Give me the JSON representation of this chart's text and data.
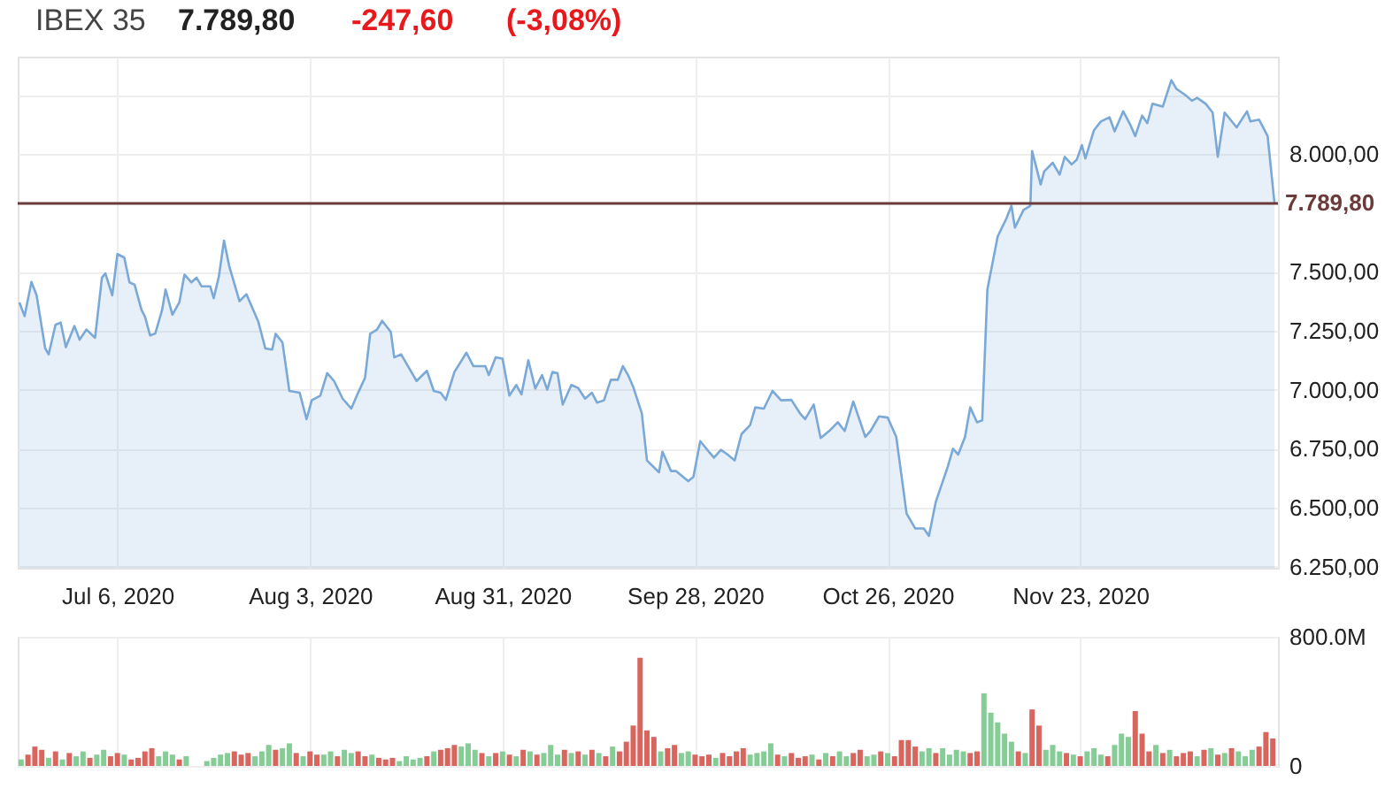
{
  "chart_data": [
    {
      "type": "area",
      "title": "IBEX 35",
      "annotations": [
        "7.789,80",
        "-247,60",
        "(-3,08%)"
      ],
      "x": [
        "2020-06-21T18:00",
        "2020-06-22T12:00",
        "2020-06-23T12:00",
        "2020-06-24T06:00",
        "2020-06-25T12:00",
        "2020-06-26",
        "2020-06-27",
        "2020-06-27T18:00",
        "2020-06-28T12:00",
        "2020-06-29T18:00",
        "2020-06-30T12:00",
        "2020-07-01T12:00",
        "2020-07-02T18:00",
        "2020-07-03T18:00",
        "2020-07-04T06:00",
        "2020-07-05T06:00",
        "2020-07-06",
        "2020-07-07",
        "2020-07-07T18:00",
        "2020-07-08T12:00",
        "2020-07-09T12:00",
        "2020-07-10",
        "2020-07-10T18:00",
        "2020-07-11T12:00",
        "2020-07-12T12:00",
        "2020-07-13",
        "2020-07-14",
        "2020-07-15",
        "2020-07-15T18:00",
        "2020-07-16T18:00",
        "2020-07-17T12:00",
        "2020-07-18T06:00",
        "2020-07-19T12:00",
        "2020-07-20",
        "2020-07-20T18:00",
        "2020-07-21T12:00",
        "2020-07-22T06:00",
        "2020-07-23T18:00",
        "2020-07-24T18:00",
        "2020-07-26T12:00",
        "2020-07-27T12:00",
        "2020-07-28T12:00",
        "2020-07-29",
        "2020-07-30",
        "2020-07-31",
        "2020-08-01T12:00",
        "2020-08-02T12:00",
        "2020-08-03T06:00",
        "2020-08-04T12:00",
        "2020-08-05T12:00",
        "2020-08-06T12:00",
        "2020-08-07T18:00",
        "2020-08-09",
        "2020-08-10",
        "2020-08-11",
        "2020-08-11T18:00",
        "2020-08-12T18:00",
        "2020-08-13T12:00",
        "2020-08-14T18:00",
        "2020-08-15T06:00",
        "2020-08-16T06:00",
        "2020-08-17T12:00",
        "2020-08-18T12:00",
        "2020-08-20",
        "2020-08-21",
        "2020-08-22",
        "2020-08-22T18:00",
        "2020-08-24",
        "2020-08-25T18:00",
        "2020-08-26T18:00",
        "2020-08-28T12:00",
        "2020-08-29",
        "2020-08-30",
        "2020-08-31",
        "2020-09-01",
        "2020-09-02",
        "2020-09-02T18:00",
        "2020-09-03T18:00",
        "2020-09-04T18:00",
        "2020-09-05T18:00",
        "2020-09-06T12:00",
        "2020-09-07T06:00",
        "2020-09-08",
        "2020-09-08T18:00",
        "2020-09-10",
        "2020-09-11",
        "2020-09-12",
        "2020-09-13",
        "2020-09-13T18:00",
        "2020-09-14T18:00",
        "2020-09-15T18:00",
        "2020-09-16T18:00",
        "2020-09-17T12:00",
        "2020-09-18T06:00",
        "2020-09-19",
        "2020-09-20T06:00",
        "2020-09-21",
        "2020-09-22T18:00",
        "2020-09-23T06:00",
        "2020-09-24T12:00",
        "2020-09-25T06:00",
        "2020-09-27",
        "2020-09-27T18:00",
        "2020-09-28T18:00",
        "2020-09-30",
        "2020-09-30T18:00",
        "2020-10-01T18:00",
        "2020-10-02T18:00",
        "2020-10-03T18:00",
        "2020-10-04T18:00",
        "2020-10-06",
        "2020-10-06T18:00",
        "2020-10-08",
        "2020-10-09T06:00",
        "2020-10-10T12:00",
        "2020-10-12",
        "2020-10-13T06:00",
        "2020-10-14",
        "2020-10-15T06:00",
        "2020-10-16T06:00",
        "2020-10-17T12:00",
        "2020-10-18T18:00",
        "2020-10-19T18:00",
        "2020-10-21",
        "2020-10-22T18:00",
        "2020-10-23T12:00",
        "2020-10-24T18:00",
        "2020-10-26",
        "2020-10-27T06:00",
        "2020-10-28T18:00",
        "2020-10-30",
        "2020-10-31T06:00",
        "2020-11-01",
        "2020-11-02",
        "2020-11-03T18:00",
        "2020-11-04T12:00",
        "2020-11-05T06:00",
        "2020-11-06T06:00",
        "2020-11-07",
        "2020-11-08",
        "2020-11-08T18:00",
        "2020-11-09T12:00",
        "2020-11-11",
        "2020-11-12T06:00",
        "2020-11-13",
        "2020-11-13T12:00",
        "2020-11-14T18:00",
        "2020-11-15T18:00",
        "2020-11-16",
        "2020-11-17T06:00",
        "2020-11-17T18:00",
        "2020-11-19",
        "2020-11-20",
        "2020-11-20T18:00",
        "2020-11-21T18:00",
        "2020-11-22T12:00",
        "2020-11-23T06:00",
        "2020-11-23T18:00",
        "2020-11-25",
        "2020-11-26",
        "2020-11-27T06:00",
        "2020-11-28",
        "2020-11-29T06:00",
        "2020-11-30T06:00",
        "2020-12-01",
        "2020-12-02",
        "2020-12-02T18:00",
        "2020-12-03T12:00",
        "2020-12-05",
        "2020-12-06T06:00",
        "2020-12-07",
        "2020-12-08T06:00",
        "2020-12-09T06:00",
        "2020-12-10",
        "2020-12-11T06:00",
        "2020-12-12T06:00",
        "2020-12-13",
        "2020-12-14",
        "2020-12-15T18:00",
        "2020-12-17T06:00",
        "2020-12-17T18:00",
        "2020-12-19",
        "2020-12-20T06:00",
        "2020-12-21T06:00"
      ],
      "series": [
        {
          "color": "#7aa9d8",
          "values": [
            7370,
            7312,
            7457,
            7400,
            7175,
            7150,
            7275,
            7285,
            7180,
            7270,
            7212,
            7255,
            7220,
            7475,
            7493,
            7400,
            7575,
            7560,
            7455,
            7445,
            7338,
            7310,
            7230,
            7238,
            7338,
            7425,
            7318,
            7370,
            7488,
            7455,
            7475,
            7438,
            7438,
            7388,
            7480,
            7632,
            7525,
            7375,
            7405,
            7287,
            7175,
            7170,
            7237,
            7200,
            6995,
            6987,
            6875,
            6955,
            6975,
            7070,
            7037,
            6962,
            6920,
            6987,
            7050,
            7237,
            7255,
            7292,
            7245,
            7137,
            7150,
            7087,
            7037,
            7080,
            6995,
            6987,
            6957,
            7075,
            7157,
            7100,
            7100,
            7062,
            7137,
            7132,
            6975,
            7020,
            6980,
            7125,
            7005,
            7062,
            7000,
            7075,
            7070,
            6937,
            7020,
            7007,
            6962,
            6987,
            6945,
            6955,
            7042,
            7042,
            7100,
            7062,
            7012,
            6900,
            6700,
            6650,
            6737,
            6655,
            6655,
            6612,
            6630,
            6782,
            6737,
            6712,
            6745,
            6725,
            6700,
            6812,
            6850,
            6925,
            6920,
            6995,
            6955,
            6957,
            6900,
            6875,
            6937,
            6795,
            6825,
            6862,
            6825,
            6950,
            6800,
            6825,
            6887,
            6882,
            6800,
            6475,
            6412,
            6412,
            6380,
            6525,
            6675,
            6750,
            6725,
            6800,
            6925,
            6862,
            6870,
            7425,
            7650,
            7725,
            7780,
            7687,
            7762,
            7780,
            8012,
            7870,
            7925,
            7962,
            7912,
            7987,
            7955,
            7975,
            8037,
            7980,
            8100,
            8137,
            8155,
            8095,
            8180,
            8125,
            8075,
            8162,
            8130,
            8212,
            8200,
            8312,
            8275,
            8250,
            8225,
            8237,
            8212,
            8175,
            7987,
            8175,
            8112,
            8180,
            8137,
            8145,
            8075,
            7789.8
          ]
        }
      ],
      "xlim": [
        "2020-06-21T12:00",
        "2020-12-21T18:00"
      ],
      "xticks": [
        {
          "value": "2020-07-06",
          "label": "Jul 6, 2020"
        },
        {
          "value": "2020-08-03",
          "label": "Aug 3, 2020"
        },
        {
          "value": "2020-08-31",
          "label": "Aug 31, 2020"
        },
        {
          "value": "2020-09-28",
          "label": "Sep 28, 2020"
        },
        {
          "value": "2020-10-26",
          "label": "Oct 26, 2020"
        },
        {
          "value": "2020-11-23",
          "label": "Nov 23, 2020"
        }
      ],
      "ylim": [
        6245,
        8412
      ],
      "yticks": [
        {
          "value": 6250,
          "label": "6.250,00"
        },
        {
          "value": 6500,
          "label": "6.500,00"
        },
        {
          "value": 6750,
          "label": "6.750,00"
        },
        {
          "value": 7000,
          "label": "7.000,00"
        },
        {
          "value": 7250,
          "label": "7.250,00"
        },
        {
          "value": 7500,
          "label": "7.500,00"
        },
        {
          "value": 8000,
          "label": "8.000,00"
        },
        {
          "value": 8250,
          "label": null
        }
      ],
      "ref_lines": [
        {
          "axis": "y",
          "value": 7789.8,
          "label": "7.789,80",
          "color": "#6b3a3a"
        }
      ],
      "grid": true
    },
    {
      "type": "bar",
      "tick_labels": "y",
      "grid": true,
      "x": [
        "2020-06-22",
        "2020-06-23",
        "2020-06-24",
        "2020-06-25",
        "2020-06-26",
        "2020-06-27",
        "2020-06-28",
        "2020-06-29",
        "2020-06-30",
        "2020-07-01",
        "2020-07-02",
        "2020-07-03",
        "2020-07-04",
        "2020-07-05",
        "2020-07-06",
        "2020-07-07",
        "2020-07-08",
        "2020-07-09",
        "2020-07-10",
        "2020-07-11",
        "2020-07-12",
        "2020-07-13",
        "2020-07-14",
        "2020-07-15",
        "2020-07-16",
        "2020-07-17",
        "2020-07-18",
        "2020-07-19",
        "2020-07-20",
        "2020-07-21",
        "2020-07-22",
        "2020-07-23",
        "2020-07-24",
        "2020-07-25",
        "2020-07-26",
        "2020-07-27",
        "2020-07-28",
        "2020-07-29",
        "2020-07-30",
        "2020-07-31",
        "2020-08-01",
        "2020-08-02",
        "2020-08-03",
        "2020-08-04",
        "2020-08-05",
        "2020-08-06",
        "2020-08-07",
        "2020-08-08",
        "2020-08-09",
        "2020-08-10",
        "2020-08-11",
        "2020-08-12",
        "2020-08-13",
        "2020-08-14",
        "2020-08-15",
        "2020-08-16",
        "2020-08-17",
        "2020-08-18",
        "2020-08-19",
        "2020-08-20",
        "2020-08-21",
        "2020-08-22",
        "2020-08-23",
        "2020-08-24",
        "2020-08-25",
        "2020-08-26",
        "2020-08-27",
        "2020-08-28",
        "2020-08-29",
        "2020-08-30",
        "2020-08-31",
        "2020-09-01",
        "2020-09-02",
        "2020-09-03",
        "2020-09-04",
        "2020-09-05",
        "2020-09-06",
        "2020-09-07",
        "2020-09-08",
        "2020-09-09",
        "2020-09-10",
        "2020-09-11",
        "2020-09-12",
        "2020-09-13",
        "2020-09-14",
        "2020-09-15",
        "2020-09-16",
        "2020-09-17",
        "2020-09-18",
        "2020-09-19",
        "2020-09-20",
        "2020-09-21",
        "2020-09-22",
        "2020-09-23",
        "2020-09-24",
        "2020-09-25",
        "2020-09-26",
        "2020-09-27",
        "2020-09-28",
        "2020-09-29",
        "2020-09-30",
        "2020-10-01",
        "2020-10-02",
        "2020-10-03",
        "2020-10-04",
        "2020-10-05",
        "2020-10-06",
        "2020-10-07",
        "2020-10-08",
        "2020-10-09",
        "2020-10-10",
        "2020-10-11",
        "2020-10-12",
        "2020-10-13",
        "2020-10-14",
        "2020-10-15",
        "2020-10-16",
        "2020-10-17",
        "2020-10-18",
        "2020-10-19",
        "2020-10-20",
        "2020-10-21",
        "2020-10-22",
        "2020-10-23",
        "2020-10-24",
        "2020-10-25",
        "2020-10-26",
        "2020-10-27",
        "2020-10-28",
        "2020-10-29",
        "2020-10-30",
        "2020-10-31",
        "2020-11-01",
        "2020-11-02",
        "2020-11-03",
        "2020-11-04",
        "2020-11-05",
        "2020-11-06",
        "2020-11-07",
        "2020-11-08",
        "2020-11-09",
        "2020-11-10",
        "2020-11-11",
        "2020-11-12",
        "2020-11-13",
        "2020-11-14",
        "2020-11-15",
        "2020-11-16",
        "2020-11-17",
        "2020-11-18",
        "2020-11-19",
        "2020-11-20",
        "2020-11-21",
        "2020-11-22",
        "2020-11-23",
        "2020-11-24",
        "2020-11-25",
        "2020-11-26",
        "2020-11-27",
        "2020-11-28",
        "2020-11-29",
        "2020-11-30",
        "2020-12-01",
        "2020-12-02",
        "2020-12-03",
        "2020-12-04",
        "2020-12-05",
        "2020-12-06",
        "2020-12-07",
        "2020-12-08",
        "2020-12-09",
        "2020-12-10",
        "2020-12-11",
        "2020-12-12",
        "2020-12-13",
        "2020-12-14",
        "2020-12-15",
        "2020-12-16",
        "2020-12-17",
        "2020-12-18",
        "2020-12-19",
        "2020-12-20",
        "2020-12-21"
      ],
      "values": [
        40000000,
        70000000,
        120000000,
        100000000,
        50000000,
        90000000,
        40000000,
        80000000,
        60000000,
        90000000,
        50000000,
        70000000,
        100000000,
        60000000,
        80000000,
        70000000,
        40000000,
        50000000,
        90000000,
        110000000,
        60000000,
        90000000,
        70000000,
        40000000,
        60000000,
        null,
        null,
        30000000,
        50000000,
        70000000,
        80000000,
        90000000,
        70000000,
        80000000,
        60000000,
        90000000,
        130000000,
        100000000,
        110000000,
        140000000,
        80000000,
        60000000,
        90000000,
        70000000,
        70000000,
        90000000,
        60000000,
        100000000,
        80000000,
        90000000,
        60000000,
        70000000,
        50000000,
        40000000,
        50000000,
        30000000,
        60000000,
        40000000,
        50000000,
        60000000,
        90000000,
        100000000,
        110000000,
        130000000,
        120000000,
        140000000,
        100000000,
        80000000,
        60000000,
        80000000,
        90000000,
        70000000,
        60000000,
        100000000,
        90000000,
        70000000,
        80000000,
        130000000,
        70000000,
        100000000,
        80000000,
        90000000,
        70000000,
        100000000,
        80000000,
        60000000,
        120000000,
        90000000,
        150000000,
        250000000,
        670000000,
        220000000,
        180000000,
        90000000,
        110000000,
        130000000,
        80000000,
        90000000,
        70000000,
        60000000,
        70000000,
        50000000,
        80000000,
        60000000,
        90000000,
        110000000,
        70000000,
        80000000,
        90000000,
        140000000,
        70000000,
        60000000,
        80000000,
        50000000,
        60000000,
        70000000,
        40000000,
        80000000,
        60000000,
        90000000,
        60000000,
        80000000,
        100000000,
        60000000,
        70000000,
        90000000,
        80000000,
        60000000,
        160000000,
        160000000,
        120000000,
        90000000,
        110000000,
        80000000,
        110000000,
        70000000,
        100000000,
        90000000,
        80000000,
        90000000,
        450000000,
        330000000,
        270000000,
        200000000,
        150000000,
        90000000,
        80000000,
        350000000,
        250000000,
        100000000,
        130000000,
        90000000,
        80000000,
        70000000,
        60000000,
        90000000,
        110000000,
        70000000,
        60000000,
        130000000,
        200000000,
        180000000,
        340000000,
        200000000,
        90000000,
        130000000,
        80000000,
        100000000,
        60000000,
        80000000,
        90000000,
        60000000,
        100000000,
        110000000,
        70000000,
        80000000,
        110000000,
        90000000,
        60000000,
        100000000,
        120000000,
        210000000,
        170000000
      ],
      "colors": [
        "#86cc97",
        "#d9655f",
        "#d9655f",
        "#d9655f",
        "#86cc97",
        "#d9655f",
        "#86cc97",
        "#d9655f",
        "#86cc97",
        "#86cc97",
        "#d9655f",
        "#86cc97",
        "#86cc97",
        "#d9655f",
        "#d9655f",
        "#86cc97",
        "#d9655f",
        "#d9655f",
        "#d9655f",
        "#d9655f",
        "#86cc97",
        "#86cc97",
        "#86cc97",
        "#d9655f",
        "#86cc97",
        "#86cc97",
        "#86cc97",
        "#86cc97",
        "#86cc97",
        "#86cc97",
        "#86cc97",
        "#d9655f",
        "#d9655f",
        "#d9655f",
        "#86cc97",
        "#86cc97",
        "#86cc97",
        "#d9655f",
        "#86cc97",
        "#86cc97",
        "#d9655f",
        "#86cc97",
        "#d9655f",
        "#d9655f",
        "#86cc97",
        "#86cc97",
        "#d9655f",
        "#86cc97",
        "#86cc97",
        "#d9655f",
        "#d9655f",
        "#86cc97",
        "#d9655f",
        "#d9655f",
        "#d9655f",
        "#86cc97",
        "#86cc97",
        "#86cc97",
        "#86cc97",
        "#d9655f",
        "#86cc97",
        "#d9655f",
        "#d9655f",
        "#d9655f",
        "#86cc97",
        "#86cc97",
        "#86cc97",
        "#d9655f",
        "#86cc97",
        "#d9655f",
        "#86cc97",
        "#d9655f",
        "#86cc97",
        "#d9655f",
        "#86cc97",
        "#d9655f",
        "#86cc97",
        "#86cc97",
        "#86cc97",
        "#d9655f",
        "#86cc97",
        "#d9655f",
        "#86cc97",
        "#d9655f",
        "#86cc97",
        "#d9655f",
        "#86cc97",
        "#d9655f",
        "#d9655f",
        "#d9655f",
        "#d9655f",
        "#d9655f",
        "#d9655f",
        "#86cc97",
        "#d9655f",
        "#d9655f",
        "#86cc97",
        "#86cc97",
        "#d9655f",
        "#d9655f",
        "#d9655f",
        "#86cc97",
        "#d9655f",
        "#d9655f",
        "#d9655f",
        "#d9655f",
        "#86cc97",
        "#86cc97",
        "#86cc97",
        "#86cc97",
        "#d9655f",
        "#86cc97",
        "#d9655f",
        "#d9655f",
        "#d9655f",
        "#86cc97",
        "#d9655f",
        "#86cc97",
        "#d9655f",
        "#86cc97",
        "#86cc97",
        "#d9655f",
        "#d9655f",
        "#86cc97",
        "#86cc97",
        "#d9655f",
        "#86cc97",
        "#d9655f",
        "#d9655f",
        "#d9655f",
        "#d9655f",
        "#86cc97",
        "#86cc97",
        "#d9655f",
        "#86cc97",
        "#86cc97",
        "#86cc97",
        "#86cc97",
        "#d9655f",
        "#d9655f",
        "#86cc97",
        "#86cc97",
        "#86cc97",
        "#86cc97",
        "#86cc97",
        "#d9655f",
        "#86cc97",
        "#d9655f",
        "#d9655f",
        "#86cc97",
        "#86cc97",
        "#86cc97",
        "#d9655f",
        "#86cc97",
        "#d9655f",
        "#86cc97",
        "#86cc97",
        "#86cc97",
        "#d9655f",
        "#86cc97",
        "#86cc97",
        "#86cc97",
        "#d9655f",
        "#d9655f",
        "#d9655f",
        "#86cc97",
        "#d9655f",
        "#86cc97",
        "#d9655f",
        "#d9655f",
        "#d9655f",
        "#86cc97",
        "#d9655f",
        "#86cc97",
        "#d9655f",
        "#86cc97",
        "#d9655f",
        "#86cc97",
        "#86cc97",
        "#86cc97",
        "#d9655f",
        "#d9655f",
        "#d9655f"
      ],
      "xlim": [
        "2020-06-21T12:00",
        "2020-12-21T18:00"
      ],
      "xticks": [
        {
          "value": "2020-07-06",
          "label": null
        },
        {
          "value": "2020-08-03",
          "label": null
        },
        {
          "value": "2020-08-31",
          "label": null
        },
        {
          "value": "2020-09-28",
          "label": null
        },
        {
          "value": "2020-10-26",
          "label": null
        },
        {
          "value": "2020-11-23",
          "label": null
        }
      ],
      "ylim": [
        0,
        800000000
      ],
      "yticks": [
        0,
        {
          "value": 800000000,
          "label": "800.0M"
        }
      ]
    }
  ]
}
